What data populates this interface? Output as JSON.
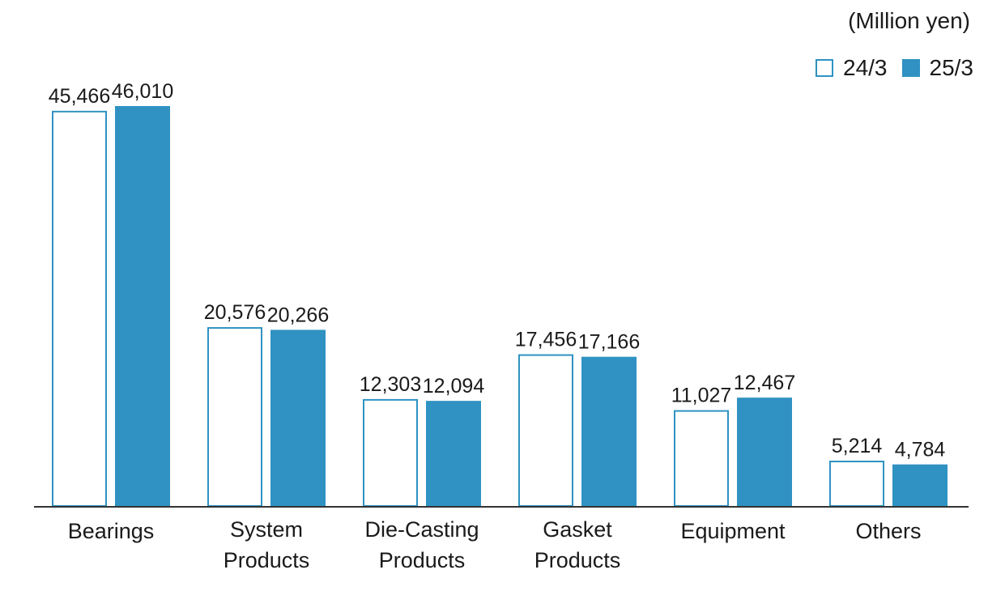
{
  "chart_data": {
    "type": "bar",
    "unit_label": "(Million yen)",
    "categories": [
      [
        "Bearings"
      ],
      [
        "System",
        "Products"
      ],
      [
        "Die-Casting",
        "Products"
      ],
      [
        "Gasket",
        "Products"
      ],
      [
        "Equipment"
      ],
      [
        "Others"
      ]
    ],
    "series": [
      {
        "name": "24/3",
        "values": [
          45466,
          20576,
          12303,
          17456,
          11027,
          5214
        ],
        "labels": [
          "45,466",
          "20,576",
          "12,303",
          "17,456",
          "11,027",
          "5,214"
        ],
        "style": "outline"
      },
      {
        "name": "25/3",
        "values": [
          46010,
          20266,
          12094,
          17166,
          12467,
          4784
        ],
        "labels": [
          "46,010",
          "20,266",
          "12,094",
          "17,166",
          "12,467",
          "4,784"
        ],
        "style": "filled"
      }
    ],
    "ylim": [
      0,
      46010
    ],
    "grid": false,
    "legend": "top-right",
    "colors": {
      "accent": "#2f92c2"
    }
  }
}
